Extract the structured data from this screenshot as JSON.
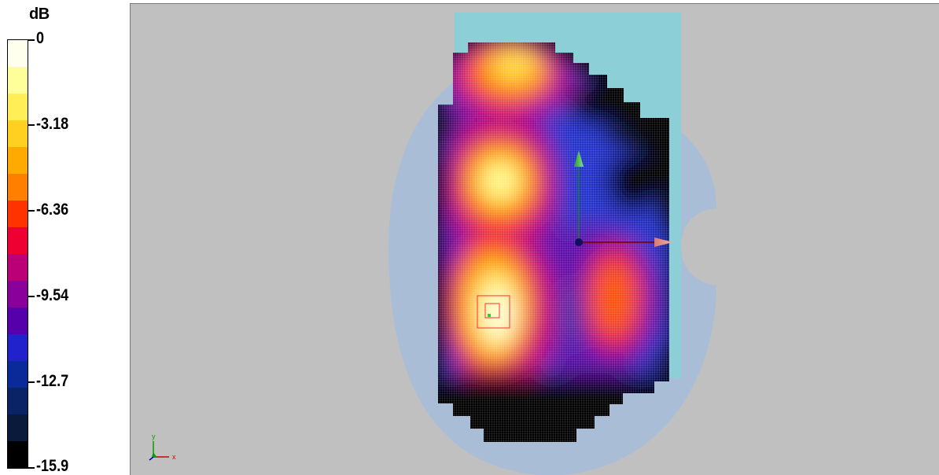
{
  "legend": {
    "unit": "dB",
    "labels": [
      "0",
      "-3.18",
      "-6.36",
      "-9.54",
      "-12.7",
      "-15.9"
    ],
    "colors": [
      "#ffffee",
      "#ffff99",
      "#ffee55",
      "#ffd020",
      "#ffaa00",
      "#ff8000",
      "#ff3300",
      "#ee0033",
      "#bb0077",
      "#880099",
      "#5500aa",
      "#2222cc",
      "#0b2a99",
      "#0a2366",
      "#0a1a3a",
      "#000000"
    ]
  },
  "viewport": {
    "background": "#c0c0c0",
    "phantom_color": "#a9bed6",
    "block_color": "#8ccfd6",
    "axis_labels": {
      "y": "y",
      "x": "x"
    }
  }
}
